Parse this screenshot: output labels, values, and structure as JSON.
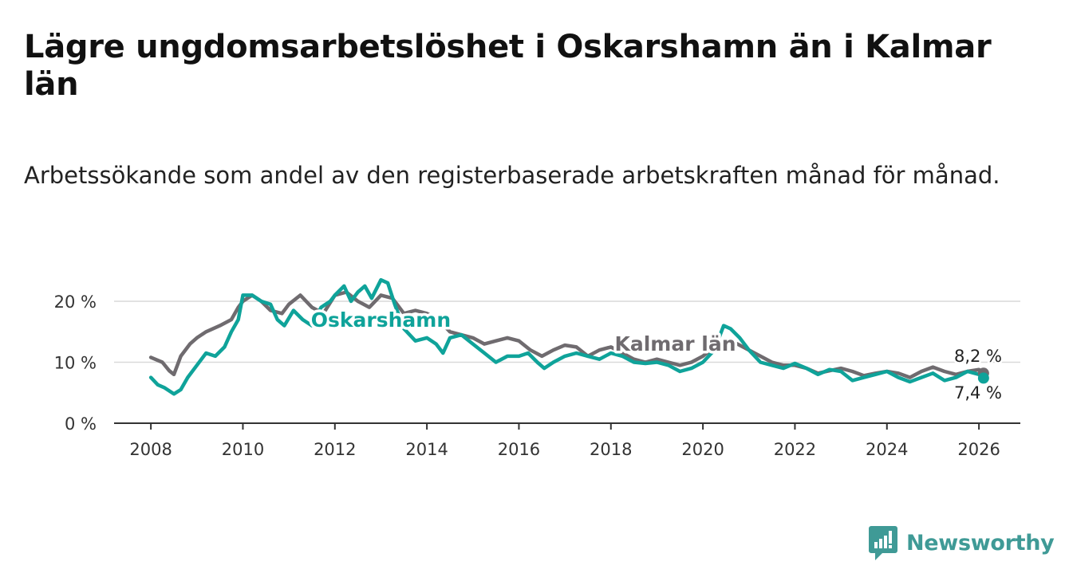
{
  "header": {
    "title": "Lägre ungdomsarbetslöshet i Oskarshamn än i Kalmar län",
    "subtitle": "Arbetssökande som andel av den registerbaserade arbetskraften månad för månad."
  },
  "brand": {
    "name": "Newsworthy",
    "icon": "newsworthy-logo-icon",
    "color": "#3f9a96"
  },
  "chart_data": {
    "type": "line",
    "title": "Lägre ungdomsarbetslöshet i Oskarshamn än i Kalmar län",
    "subtitle": "Arbetssökande som andel av den registerbaserade arbetskraften månad för månad.",
    "xlabel": "",
    "ylabel": "",
    "xlim": [
      2007.2,
      2026.9
    ],
    "ylim": [
      0,
      20
    ],
    "grid": true,
    "x_ticks": [
      2008,
      2010,
      2012,
      2014,
      2016,
      2018,
      2020,
      2022,
      2024,
      2026
    ],
    "x_tick_labels": [
      "2008",
      "2010",
      "2012",
      "2014",
      "2016",
      "2018",
      "2020",
      "2022",
      "2024",
      "2026"
    ],
    "y_ticks": [
      0,
      10,
      20
    ],
    "y_tick_labels": [
      "0 %",
      "10 %",
      "20 %"
    ],
    "series": [
      {
        "name": "Kalmar län",
        "color": "#6f6b6f",
        "end_label": "8,2 %",
        "points": [
          [
            2008.0,
            10.8
          ],
          [
            2008.25,
            10.0
          ],
          [
            2008.4,
            8.6
          ],
          [
            2008.5,
            8.0
          ],
          [
            2008.65,
            11.0
          ],
          [
            2008.85,
            13.0
          ],
          [
            2009.0,
            14.0
          ],
          [
            2009.2,
            15.0
          ],
          [
            2009.5,
            16.0
          ],
          [
            2009.75,
            17.0
          ],
          [
            2009.9,
            19.0
          ],
          [
            2010.0,
            20.0
          ],
          [
            2010.2,
            21.0
          ],
          [
            2010.4,
            20.0
          ],
          [
            2010.6,
            18.5
          ],
          [
            2010.85,
            18.0
          ],
          [
            2011.0,
            19.5
          ],
          [
            2011.25,
            21.0
          ],
          [
            2011.5,
            19.0
          ],
          [
            2011.75,
            18.0
          ],
          [
            2012.0,
            21.0
          ],
          [
            2012.25,
            21.5
          ],
          [
            2012.5,
            20.0
          ],
          [
            2012.75,
            19.0
          ],
          [
            2013.0,
            21.0
          ],
          [
            2013.25,
            20.5
          ],
          [
            2013.5,
            18.0
          ],
          [
            2013.75,
            18.5
          ],
          [
            2014.0,
            18.0
          ],
          [
            2014.25,
            17.0
          ],
          [
            2014.5,
            15.0
          ],
          [
            2015.0,
            14.0
          ],
          [
            2015.25,
            13.0
          ],
          [
            2015.5,
            13.5
          ],
          [
            2015.75,
            14.0
          ],
          [
            2016.0,
            13.5
          ],
          [
            2016.25,
            12.0
          ],
          [
            2016.5,
            11.0
          ],
          [
            2016.75,
            12.0
          ],
          [
            2017.0,
            12.8
          ],
          [
            2017.25,
            12.5
          ],
          [
            2017.5,
            11.0
          ],
          [
            2017.75,
            12.0
          ],
          [
            2018.0,
            12.5
          ],
          [
            2018.25,
            11.5
          ],
          [
            2018.5,
            10.5
          ],
          [
            2018.75,
            10.0
          ],
          [
            2019.0,
            10.5
          ],
          [
            2019.25,
            10.0
          ],
          [
            2019.5,
            9.5
          ],
          [
            2019.75,
            10.0
          ],
          [
            2020.0,
            11.0
          ],
          [
            2020.25,
            12.5
          ],
          [
            2020.5,
            13.5
          ],
          [
            2020.75,
            13.0
          ],
          [
            2021.0,
            12.0
          ],
          [
            2021.25,
            11.0
          ],
          [
            2021.5,
            10.0
          ],
          [
            2021.75,
            9.5
          ],
          [
            2022.0,
            9.5
          ],
          [
            2022.25,
            9.0
          ],
          [
            2022.5,
            8.2
          ],
          [
            2022.75,
            8.6
          ],
          [
            2023.0,
            9.0
          ],
          [
            2023.25,
            8.5
          ],
          [
            2023.5,
            7.8
          ],
          [
            2023.75,
            8.2
          ],
          [
            2024.0,
            8.5
          ],
          [
            2024.25,
            8.2
          ],
          [
            2024.5,
            7.5
          ],
          [
            2024.75,
            8.5
          ],
          [
            2025.0,
            9.2
          ],
          [
            2025.25,
            8.5
          ],
          [
            2025.5,
            8.0
          ],
          [
            2025.75,
            8.5
          ],
          [
            2026.0,
            8.8
          ],
          [
            2026.1,
            8.2
          ]
        ]
      },
      {
        "name": "Oskarshamn",
        "color": "#0fa39a",
        "end_label": "7,4 %",
        "points": [
          [
            2008.0,
            7.5
          ],
          [
            2008.15,
            6.3
          ],
          [
            2008.3,
            5.8
          ],
          [
            2008.5,
            4.8
          ],
          [
            2008.65,
            5.5
          ],
          [
            2008.8,
            7.5
          ],
          [
            2009.0,
            9.5
          ],
          [
            2009.2,
            11.5
          ],
          [
            2009.4,
            11.0
          ],
          [
            2009.6,
            12.5
          ],
          [
            2009.75,
            15.0
          ],
          [
            2009.9,
            17.0
          ],
          [
            2010.0,
            21.0
          ],
          [
            2010.2,
            21.0
          ],
          [
            2010.4,
            20.0
          ],
          [
            2010.6,
            19.5
          ],
          [
            2010.75,
            17.0
          ],
          [
            2010.9,
            16.0
          ],
          [
            2011.1,
            18.5
          ],
          [
            2011.3,
            17.0
          ],
          [
            2011.5,
            16.0
          ],
          [
            2011.7,
            19.0
          ],
          [
            2011.9,
            20.0
          ],
          [
            2012.0,
            21.0
          ],
          [
            2012.2,
            22.5
          ],
          [
            2012.35,
            20.0
          ],
          [
            2012.5,
            21.5
          ],
          [
            2012.65,
            22.5
          ],
          [
            2012.8,
            20.5
          ],
          [
            2013.0,
            23.5
          ],
          [
            2013.15,
            23.0
          ],
          [
            2013.3,
            19.5
          ],
          [
            2013.5,
            15.5
          ],
          [
            2013.75,
            13.5
          ],
          [
            2014.0,
            14.0
          ],
          [
            2014.2,
            13.0
          ],
          [
            2014.35,
            11.5
          ],
          [
            2014.5,
            14.0
          ],
          [
            2014.75,
            14.5
          ],
          [
            2015.0,
            13.0
          ],
          [
            2015.25,
            11.5
          ],
          [
            2015.5,
            10.0
          ],
          [
            2015.75,
            11.0
          ],
          [
            2016.0,
            11.0
          ],
          [
            2016.2,
            11.5
          ],
          [
            2016.4,
            10.0
          ],
          [
            2016.55,
            9.0
          ],
          [
            2016.75,
            10.0
          ],
          [
            2017.0,
            11.0
          ],
          [
            2017.25,
            11.5
          ],
          [
            2017.5,
            11.0
          ],
          [
            2017.75,
            10.5
          ],
          [
            2018.0,
            11.5
          ],
          [
            2018.25,
            11.0
          ],
          [
            2018.5,
            10.0
          ],
          [
            2018.75,
            9.8
          ],
          [
            2019.0,
            10.0
          ],
          [
            2019.25,
            9.5
          ],
          [
            2019.5,
            8.5
          ],
          [
            2019.75,
            9.0
          ],
          [
            2020.0,
            10.0
          ],
          [
            2020.25,
            12.0
          ],
          [
            2020.45,
            16.0
          ],
          [
            2020.6,
            15.5
          ],
          [
            2020.8,
            14.0
          ],
          [
            2021.0,
            12.0
          ],
          [
            2021.25,
            10.0
          ],
          [
            2021.5,
            9.5
          ],
          [
            2021.75,
            9.0
          ],
          [
            2022.0,
            9.8
          ],
          [
            2022.25,
            9.0
          ],
          [
            2022.5,
            8.0
          ],
          [
            2022.75,
            8.8
          ],
          [
            2023.0,
            8.5
          ],
          [
            2023.25,
            7.0
          ],
          [
            2023.5,
            7.5
          ],
          [
            2023.75,
            8.0
          ],
          [
            2024.0,
            8.5
          ],
          [
            2024.25,
            7.5
          ],
          [
            2024.5,
            6.8
          ],
          [
            2024.75,
            7.5
          ],
          [
            2025.0,
            8.2
          ],
          [
            2025.25,
            7.0
          ],
          [
            2025.5,
            7.5
          ],
          [
            2025.75,
            8.5
          ],
          [
            2026.0,
            8.0
          ],
          [
            2026.1,
            7.4
          ]
        ]
      }
    ],
    "annotations": [
      {
        "text": "Oskarshamn",
        "series": "Oskarshamn",
        "x": 2013.0,
        "y": 15.8
      },
      {
        "text": "Kalmar län",
        "series": "Kalmar län",
        "x": 2019.4,
        "y": 11.9
      }
    ]
  }
}
